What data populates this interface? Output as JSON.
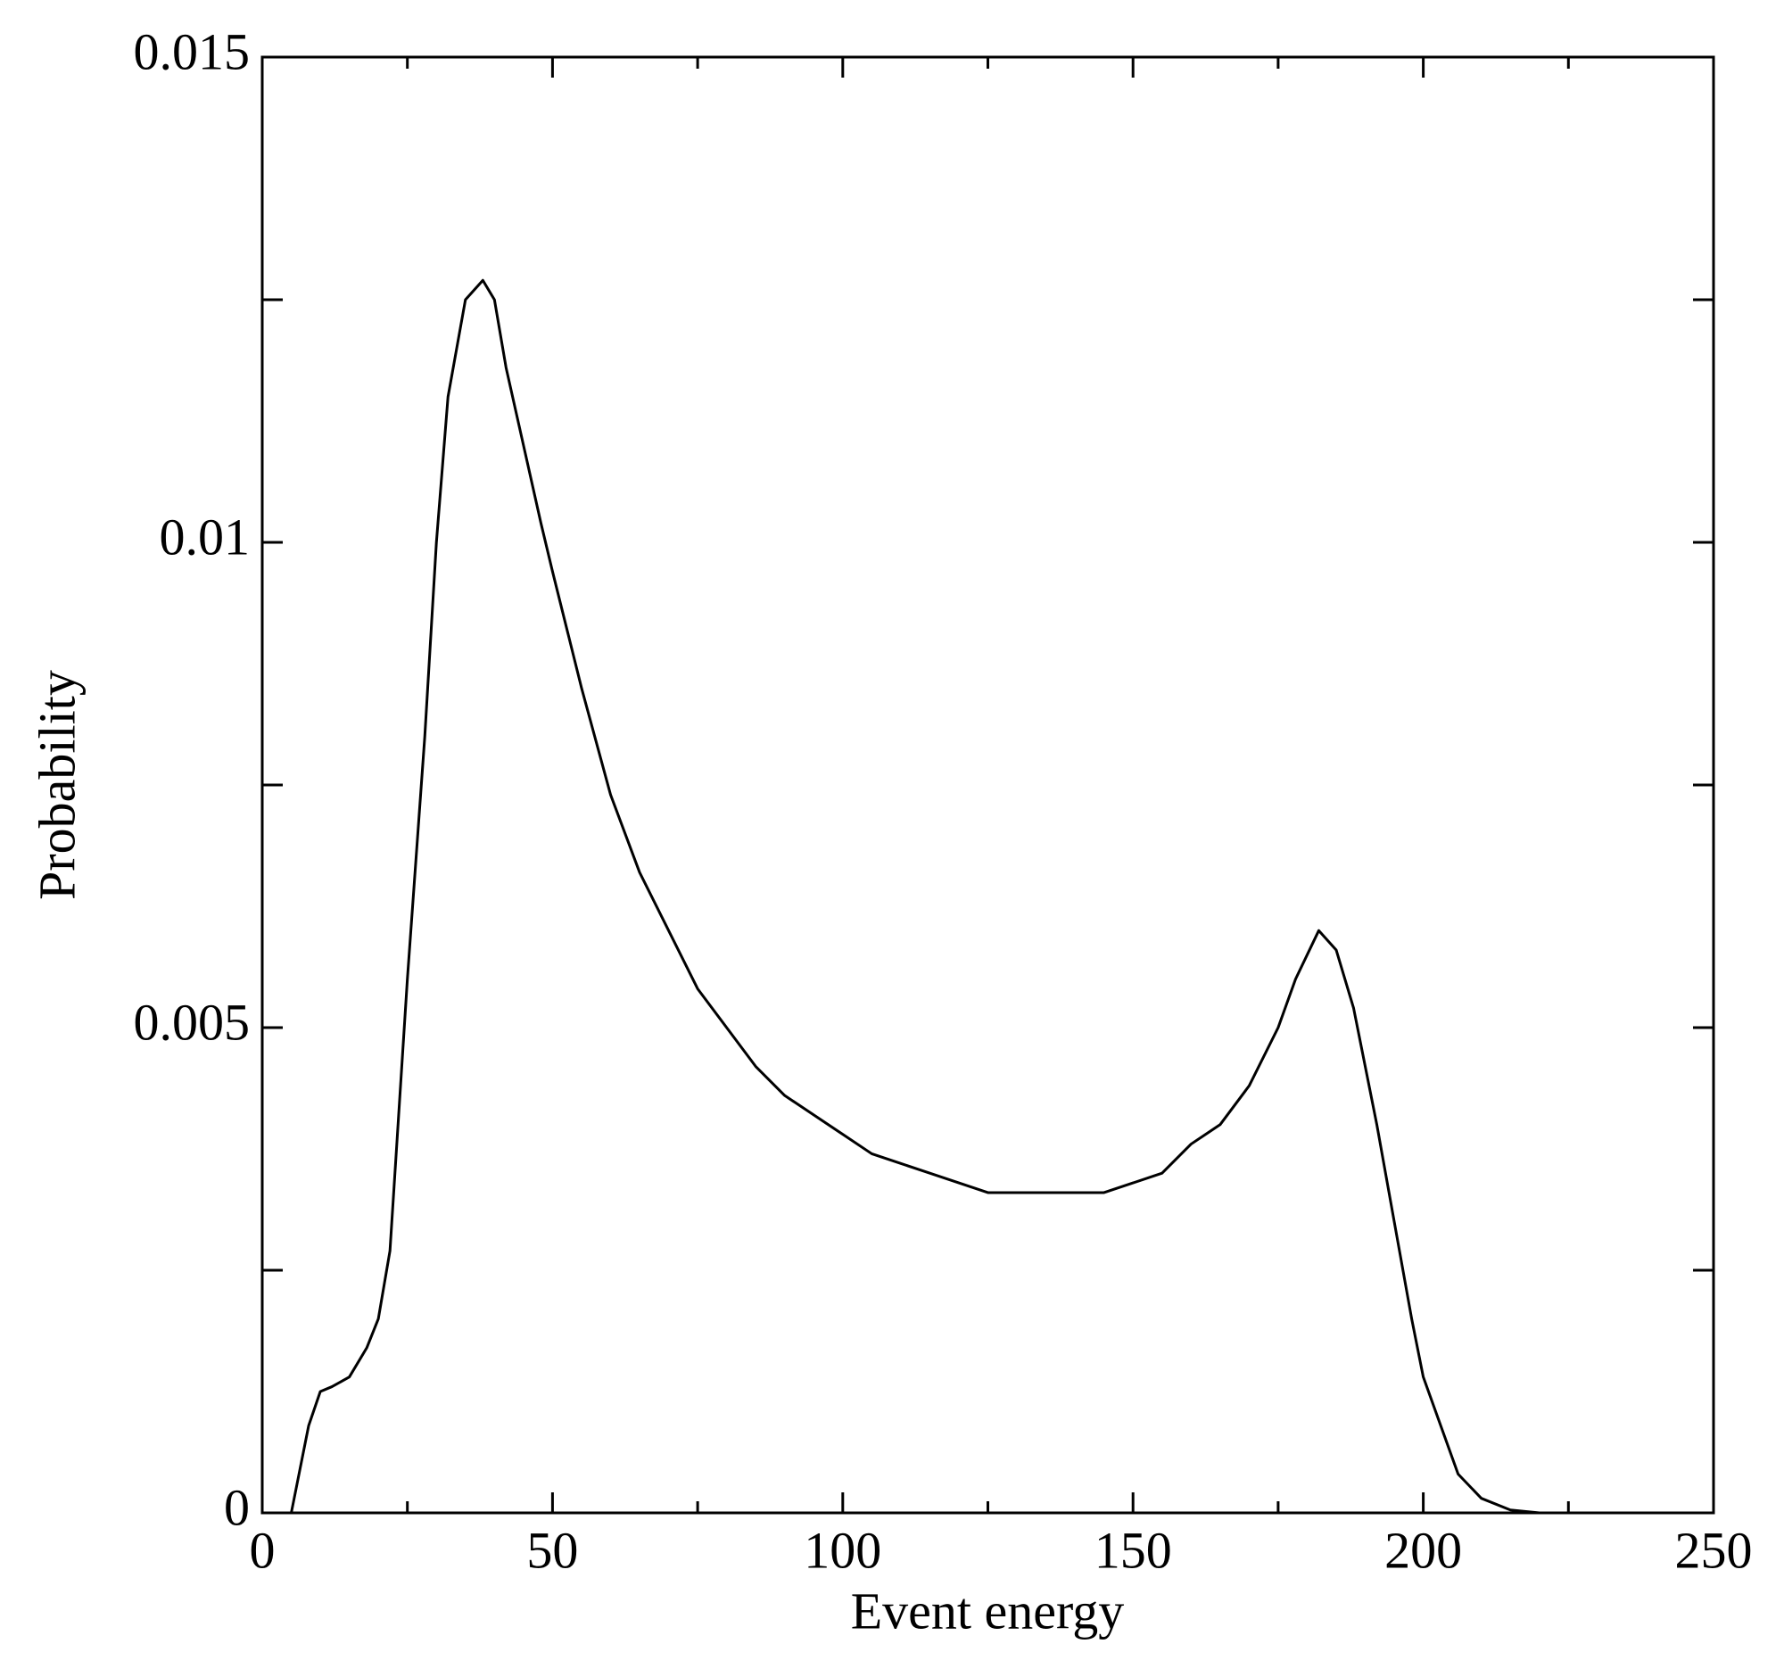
{
  "chart_data": {
    "type": "line",
    "x_label": "Event energy",
    "y_label": "Probability",
    "x": [
      5,
      8,
      10,
      12,
      15,
      18,
      20,
      22,
      25,
      28,
      30,
      32,
      35,
      38,
      40,
      42,
      45,
      48,
      50,
      55,
      60,
      65,
      70,
      75,
      80,
      85,
      90,
      95,
      100,
      105,
      110,
      115,
      120,
      125,
      130,
      135,
      140,
      145,
      150,
      155,
      160,
      165,
      170,
      175,
      178,
      182,
      185,
      188,
      192,
      195,
      198,
      200,
      203,
      206,
      210,
      215,
      220,
      250
    ],
    "series": [
      {
        "name": "Probability",
        "color": "#000000",
        "values": [
          0,
          0.0009,
          0.00125,
          0.0013,
          0.0014,
          0.0017,
          0.002,
          0.0027,
          0.0055,
          0.008,
          0.01,
          0.0115,
          0.0125,
          0.0127,
          0.0125,
          0.0118,
          0.011,
          0.0102,
          0.0097,
          0.0085,
          0.0074,
          0.0066,
          0.006,
          0.0054,
          0.005,
          0.0046,
          0.0043,
          0.0041,
          0.0039,
          0.0037,
          0.0036,
          0.0035,
          0.0034,
          0.0033,
          0.0033,
          0.0033,
          0.0033,
          0.0033,
          0.0034,
          0.0035,
          0.0038,
          0.004,
          0.0044,
          0.005,
          0.0055,
          0.006,
          0.0058,
          0.0052,
          0.004,
          0.003,
          0.002,
          0.0014,
          0.0009,
          0.0004,
          0.00015,
          3e-05,
          0,
          0
        ]
      }
    ],
    "xlim": [
      0,
      250
    ],
    "ylim": [
      0,
      0.015
    ],
    "xticks": [
      0,
      50,
      100,
      150,
      200,
      250
    ],
    "yticks": [
      0,
      0.005,
      0.01,
      0.015
    ],
    "xminorticks": [
      25,
      75,
      125,
      175,
      225
    ],
    "yminorticks": [
      0.0025,
      0.0075,
      0.0125
    ],
    "grid": false
  }
}
